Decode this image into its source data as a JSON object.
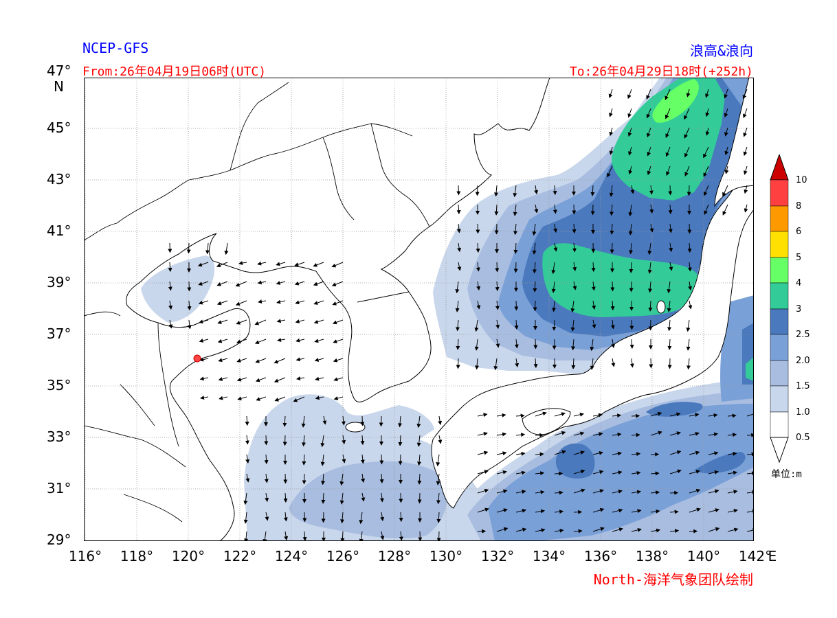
{
  "header": {
    "model": "NCEP-GFS",
    "product": "浪高&浪向",
    "from": "From:26年04月19日06时(UTC)",
    "to": "To:26年04月29日18时(+252h)"
  },
  "footer": {
    "credit": "North-海洋气象团队绘制"
  },
  "axes": {
    "lat_labels": [
      "47°",
      "45°",
      "43°",
      "41°",
      "39°",
      "37°",
      "35°",
      "33°",
      "31°",
      "29°"
    ],
    "lat_unit": "N",
    "lon_labels": [
      "116°",
      "118°",
      "120°",
      "122°",
      "124°",
      "126°",
      "128°",
      "130°",
      "132°",
      "134°",
      "136°",
      "138°",
      "140°",
      "142°"
    ],
    "lon_unit": "E",
    "lon_range": [
      116,
      142
    ],
    "lat_range": [
      29,
      47
    ]
  },
  "legend": {
    "levels": [
      "10",
      "8",
      "6",
      "5",
      "4",
      "3",
      "2.5",
      "2.0",
      "1.5",
      "1.0",
      "0.5"
    ],
    "colors": [
      "#cc0000",
      "#ff4040",
      "#ff9900",
      "#ffe000",
      "#66ff66",
      "#33cc99",
      "#4a79bd",
      "#7aa0d8",
      "#a8bde0",
      "#c9d7ec",
      "#ffffff",
      "#ffffff"
    ],
    "unit": "单位:m"
  },
  "colors": {
    "title_blue": "#0000ff",
    "title_red": "#ff0000",
    "land_border": "#000000",
    "grid": "#999999"
  }
}
